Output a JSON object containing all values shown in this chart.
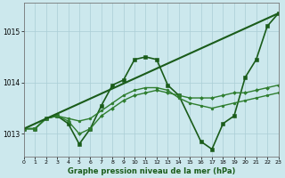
{
  "background_color": "#cce8ed",
  "grid_color": "#aacdd5",
  "line_color_dark": "#1a5c1a",
  "xlabel": "Graphe pression niveau de la mer (hPa)",
  "xlim": [
    0,
    23
  ],
  "ylim": [
    1012.55,
    1015.55
  ],
  "yticks": [
    1013,
    1014,
    1015
  ],
  "xticks": [
    0,
    1,
    2,
    3,
    4,
    5,
    6,
    7,
    8,
    9,
    10,
    11,
    12,
    13,
    14,
    15,
    16,
    17,
    18,
    19,
    20,
    21,
    22,
    23
  ],
  "series": [
    {
      "x": [
        0,
        1,
        2,
        3,
        4,
        5,
        6,
        7,
        8,
        9,
        10,
        11,
        12,
        13,
        14,
        16,
        17,
        18,
        19,
        20,
        21,
        22,
        23
      ],
      "y": [
        1013.1,
        1013.1,
        1013.3,
        1013.35,
        1013.2,
        1012.8,
        1013.1,
        1013.55,
        1013.95,
        1014.05,
        1014.45,
        1014.5,
        1014.45,
        1013.95,
        1013.75,
        1012.85,
        1012.7,
        1013.2,
        1013.35,
        1014.1,
        1014.45,
        1015.1,
        1015.35
      ],
      "style": "-",
      "marker": "s",
      "lw": 1.2,
      "ms": 2.5,
      "color": "#1a5c1a"
    },
    {
      "x": [
        0,
        1,
        2,
        3,
        4,
        5,
        6,
        7,
        8,
        9,
        10,
        11,
        12,
        13,
        14,
        15,
        16,
        17,
        18,
        19,
        20,
        21,
        22,
        23
      ],
      "y": [
        1013.1,
        1013.1,
        1013.3,
        1013.35,
        1013.25,
        1013.0,
        1013.1,
        1013.35,
        1013.5,
        1013.65,
        1013.75,
        1013.8,
        1013.85,
        1013.8,
        1013.75,
        1013.7,
        1013.7,
        1013.7,
        1013.75,
        1013.8,
        1013.8,
        1013.85,
        1013.9,
        1013.95
      ],
      "style": "-",
      "marker": "D",
      "lw": 1.0,
      "ms": 2.0,
      "color": "#2e7d2e"
    },
    {
      "x": [
        0,
        1,
        2,
        3,
        4,
        5,
        6,
        7,
        8,
        9,
        10,
        11,
        12,
        13,
        14,
        15,
        16,
        17,
        18,
        19,
        20,
        21,
        22,
        23
      ],
      "y": [
        1013.1,
        1013.1,
        1013.3,
        1013.35,
        1013.3,
        1013.25,
        1013.3,
        1013.45,
        1013.6,
        1013.75,
        1013.85,
        1013.9,
        1013.9,
        1013.85,
        1013.7,
        1013.6,
        1013.55,
        1013.5,
        1013.55,
        1013.6,
        1013.65,
        1013.7,
        1013.75,
        1013.8
      ],
      "style": "-",
      "marker": "o",
      "lw": 1.0,
      "ms": 2.0,
      "color": "#2e7d2e"
    },
    {
      "x": [
        0,
        23
      ],
      "y": [
        1013.1,
        1015.35
      ],
      "style": "-",
      "marker": null,
      "lw": 1.5,
      "ms": 0,
      "color": "#1a5c1a"
    }
  ]
}
